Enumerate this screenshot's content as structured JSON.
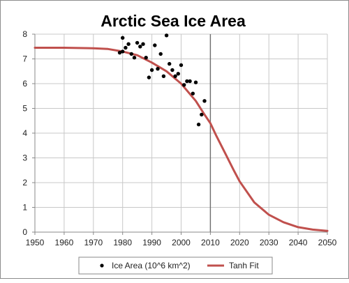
{
  "chart_data": {
    "type": "scatter",
    "title": "Arctic Sea Ice Area",
    "xlabel": "",
    "ylabel": "",
    "xlim": [
      1950,
      2050
    ],
    "ylim": [
      0,
      8
    ],
    "xticks": [
      1950,
      1960,
      1970,
      1980,
      1990,
      2000,
      2010,
      2020,
      2030,
      2040,
      2050
    ],
    "yticks": [
      0,
      1,
      2,
      3,
      4,
      5,
      6,
      7,
      8
    ],
    "grid": true,
    "reference_line_x": 2010,
    "legend_position": "bottom",
    "series": [
      {
        "name": "Ice Area (10^6 km^2)",
        "kind": "scatter",
        "color": "#000000",
        "points": [
          [
            1979,
            7.25
          ],
          [
            1980,
            7.85
          ],
          [
            1980,
            7.3
          ],
          [
            1981,
            7.45
          ],
          [
            1982,
            7.6
          ],
          [
            1983,
            7.2
          ],
          [
            1984,
            7.05
          ],
          [
            1985,
            7.65
          ],
          [
            1986,
            7.5
          ],
          [
            1987,
            7.6
          ],
          [
            1988,
            7.05
          ],
          [
            1989,
            6.25
          ],
          [
            1990,
            6.55
          ],
          [
            1991,
            7.55
          ],
          [
            1992,
            6.6
          ],
          [
            1993,
            7.2
          ],
          [
            1994,
            6.3
          ],
          [
            1995,
            7.95
          ],
          [
            1996,
            6.8
          ],
          [
            1997,
            6.55
          ],
          [
            1998,
            6.3
          ],
          [
            1999,
            6.4
          ],
          [
            2000,
            6.75
          ],
          [
            2001,
            5.95
          ],
          [
            2002,
            6.1
          ],
          [
            2003,
            6.1
          ],
          [
            2004,
            5.6
          ],
          [
            2005,
            6.05
          ],
          [
            2006,
            4.35
          ],
          [
            2007,
            4.75
          ],
          [
            2008,
            5.3
          ]
        ]
      },
      {
        "name": "Tanh Fit",
        "kind": "line",
        "color": "#c0504d",
        "points": [
          [
            1950,
            7.45
          ],
          [
            1960,
            7.45
          ],
          [
            1970,
            7.43
          ],
          [
            1975,
            7.4
          ],
          [
            1980,
            7.3
          ],
          [
            1985,
            7.15
          ],
          [
            1990,
            6.85
          ],
          [
            1995,
            6.5
          ],
          [
            2000,
            6.0
          ],
          [
            2005,
            5.3
          ],
          [
            2008,
            4.75
          ],
          [
            2010,
            4.4
          ],
          [
            2012,
            3.9
          ],
          [
            2015,
            3.2
          ],
          [
            2018,
            2.5
          ],
          [
            2020,
            2.05
          ],
          [
            2025,
            1.2
          ],
          [
            2030,
            0.7
          ],
          [
            2035,
            0.4
          ],
          [
            2040,
            0.2
          ],
          [
            2045,
            0.1
          ],
          [
            2050,
            0.05
          ]
        ]
      }
    ]
  }
}
